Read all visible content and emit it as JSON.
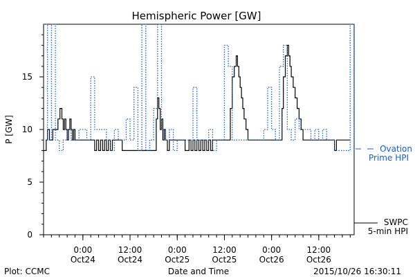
{
  "chart_data": {
    "type": "line",
    "title": "Hemispheric Power [GW]",
    "xlabel": "Date and Time",
    "ylabel": "P [GW]",
    "ylim": [
      0,
      20
    ],
    "xlim": [
      "2015-10-23T14:00",
      "2015-10-26T21:00"
    ],
    "yticks": [
      0,
      5,
      10,
      15
    ],
    "x_tick_labels": [
      {
        "time": "2015-10-24T00:00",
        "label": "0:00",
        "sublabel": "Oct24"
      },
      {
        "time": "2015-10-24T12:00",
        "label": "12:00",
        "sublabel": "Oct24"
      },
      {
        "time": "2015-10-25T00:00",
        "label": "0:00",
        "sublabel": "Oct25"
      },
      {
        "time": "2015-10-25T12:00",
        "label": "12:00",
        "sublabel": "Oct25"
      },
      {
        "time": "2015-10-26T00:00",
        "label": "0:00",
        "sublabel": "Oct26"
      },
      {
        "time": "2015-10-26T12:00",
        "label": "12:00",
        "sublabel": "Oct26"
      }
    ],
    "grid": false,
    "series": [
      {
        "name": "SWPC 5-min HPI",
        "color": "#000000",
        "style": "solid-step",
        "x": [
          "2015-10-23T14:00",
          "2015-10-23T14:40",
          "2015-10-23T15:00",
          "2015-10-23T15:30",
          "2015-10-23T16:20",
          "2015-10-23T17:40",
          "2015-10-23T18:10",
          "2015-10-23T18:40",
          "2015-10-23T19:00",
          "2015-10-23T19:20",
          "2015-10-23T19:40",
          "2015-10-23T20:00",
          "2015-10-23T20:20",
          "2015-10-23T20:40",
          "2015-10-23T21:00",
          "2015-10-23T21:20",
          "2015-10-23T21:40",
          "2015-10-23T22:00",
          "2015-10-23T22:20",
          "2015-10-23T23:30",
          "2015-10-24T00:30",
          "2015-10-24T01:30",
          "2015-10-24T03:00",
          "2015-10-24T03:30",
          "2015-10-24T04:00",
          "2015-10-24T04:30",
          "2015-10-24T05:00",
          "2015-10-24T05:30",
          "2015-10-24T06:00",
          "2015-10-24T06:30",
          "2015-10-24T07:00",
          "2015-10-24T07:30",
          "2015-10-24T08:00",
          "2015-10-24T08:30",
          "2015-10-24T09:00",
          "2015-10-24T09:30",
          "2015-10-24T10:00",
          "2015-10-24T18:40",
          "2015-10-24T19:00",
          "2015-10-24T19:20",
          "2015-10-24T19:40",
          "2015-10-24T20:00",
          "2015-10-24T20:20",
          "2015-10-24T20:40",
          "2015-10-24T21:00",
          "2015-10-24T21:30",
          "2015-10-24T22:00",
          "2015-10-24T23:00",
          "2015-10-25T00:00",
          "2015-10-25T01:00",
          "2015-10-25T02:00",
          "2015-10-25T03:00",
          "2015-10-25T03:30",
          "2015-10-25T04:00",
          "2015-10-25T04:30",
          "2015-10-25T05:00",
          "2015-10-25T05:30",
          "2015-10-25T06:00",
          "2015-10-25T06:30",
          "2015-10-25T07:00",
          "2015-10-25T07:30",
          "2015-10-25T08:00",
          "2015-10-25T08:30",
          "2015-10-25T09:00",
          "2015-10-25T09:30",
          "2015-10-25T10:00",
          "2015-10-25T11:00",
          "2015-10-25T12:00",
          "2015-10-25T13:00",
          "2015-10-25T13:30",
          "2015-10-25T14:00",
          "2015-10-25T14:30",
          "2015-10-25T15:00",
          "2015-10-25T15:20",
          "2015-10-25T15:40",
          "2015-10-25T16:00",
          "2015-10-25T16:20",
          "2015-10-25T16:40",
          "2015-10-25T17:00",
          "2015-10-25T17:30",
          "2015-10-25T18:00",
          "2015-10-25T18:30",
          "2015-10-25T19:00",
          "2015-10-25T19:30",
          "2015-10-25T20:00",
          "2015-10-25T21:00",
          "2015-10-26T00:00",
          "2015-10-26T01:00",
          "2015-10-26T02:00",
          "2015-10-26T02:40",
          "2015-10-26T03:00",
          "2015-10-26T03:30",
          "2015-10-26T04:00",
          "2015-10-26T04:20",
          "2015-10-26T04:40",
          "2015-10-26T05:00",
          "2015-10-26T05:30",
          "2015-10-26T06:00",
          "2015-10-26T06:30",
          "2015-10-26T07:00",
          "2015-10-26T07:30",
          "2015-10-26T08:00",
          "2015-10-26T08:30",
          "2015-10-26T09:00",
          "2015-10-26T10:00",
          "2015-10-26T11:00",
          "2015-10-26T12:00",
          "2015-10-26T13:00",
          "2015-10-26T14:00",
          "2015-10-26T15:00",
          "2015-10-26T16:00",
          "2015-10-26T16:30",
          "2015-10-26T17:00",
          "2015-10-26T18:00"
        ],
        "values": [
          8,
          9,
          10,
          9,
          10,
          11,
          12,
          11,
          10,
          11,
          10,
          9,
          10,
          11,
          10,
          9,
          10,
          9,
          9,
          9,
          9,
          9,
          8,
          9,
          8,
          9,
          8,
          9,
          8,
          9,
          8,
          9,
          9,
          9,
          9,
          9,
          8,
          11,
          13,
          12,
          10,
          11,
          9,
          10,
          9,
          8,
          9,
          9,
          9,
          9,
          8,
          9,
          8,
          9,
          8,
          9,
          8,
          9,
          8,
          9,
          8,
          9,
          8,
          9,
          9,
          9,
          9,
          9,
          9,
          12,
          15,
          16,
          17,
          16,
          15,
          14,
          13,
          12,
          11,
          10,
          9,
          9,
          9,
          9,
          9,
          9,
          9,
          9,
          9,
          12,
          15,
          17,
          18,
          17,
          16,
          15,
          14,
          13,
          12,
          11,
          10,
          9,
          9,
          9,
          9,
          9,
          9,
          9,
          9,
          9,
          8,
          9,
          9,
          9
        ]
      },
      {
        "name": "Ovation Prime HPI",
        "color": "#1a5fc8",
        "style": "dotted-step",
        "x": [
          "2015-10-23T14:00",
          "2015-10-23T15:00",
          "2015-10-23T16:00",
          "2015-10-23T17:00",
          "2015-10-23T18:00",
          "2015-10-23T19:00",
          "2015-10-23T20:00",
          "2015-10-23T21:00",
          "2015-10-23T22:00",
          "2015-10-23T23:00",
          "2015-10-24T00:00",
          "2015-10-24T01:00",
          "2015-10-24T02:00",
          "2015-10-24T03:00",
          "2015-10-24T04:00",
          "2015-10-24T05:00",
          "2015-10-24T06:00",
          "2015-10-24T07:00",
          "2015-10-24T08:00",
          "2015-10-24T09:00",
          "2015-10-24T10:00",
          "2015-10-24T11:00",
          "2015-10-24T12:00",
          "2015-10-24T13:00",
          "2015-10-24T14:00",
          "2015-10-24T15:00",
          "2015-10-24T16:00",
          "2015-10-24T17:00",
          "2015-10-24T18:00",
          "2015-10-24T19:00",
          "2015-10-24T20:00",
          "2015-10-24T21:00",
          "2015-10-24T22:00",
          "2015-10-24T23:00",
          "2015-10-25T00:00",
          "2015-10-25T01:00",
          "2015-10-25T02:00",
          "2015-10-25T03:00",
          "2015-10-25T04:00",
          "2015-10-25T05:00",
          "2015-10-25T06:00",
          "2015-10-25T07:00",
          "2015-10-25T08:00",
          "2015-10-25T09:00",
          "2015-10-25T10:00",
          "2015-10-25T11:00",
          "2015-10-25T12:00",
          "2015-10-25T13:00",
          "2015-10-25T14:00",
          "2015-10-25T15:00",
          "2015-10-25T16:00",
          "2015-10-25T17:00",
          "2015-10-25T18:00",
          "2015-10-25T19:00",
          "2015-10-25T20:00",
          "2015-10-25T21:00",
          "2015-10-25T22:00",
          "2015-10-25T23:00",
          "2015-10-26T00:00",
          "2015-10-26T01:00",
          "2015-10-26T02:00",
          "2015-10-26T03:00",
          "2015-10-26T04:00",
          "2015-10-26T05:00",
          "2015-10-26T06:00",
          "2015-10-26T07:00",
          "2015-10-26T08:00",
          "2015-10-26T09:00",
          "2015-10-26T10:00",
          "2015-10-26T11:00",
          "2015-10-26T12:00",
          "2015-10-26T13:00",
          "2015-10-26T14:00",
          "2015-10-26T15:00",
          "2015-10-26T16:00",
          "2015-10-26T17:00",
          "2015-10-26T18:00",
          "2015-10-26T19:00",
          "2015-10-26T20:00",
          "2015-10-26T21:00"
        ],
        "values": [
          20,
          9,
          20,
          9,
          8,
          9,
          10,
          9,
          9,
          10,
          10,
          9,
          15,
          10,
          10,
          10,
          9,
          8,
          10,
          9,
          9,
          11,
          9,
          14,
          8,
          20,
          8,
          9,
          12,
          20,
          10,
          9,
          10,
          8,
          9,
          9,
          9,
          9,
          14,
          9,
          9,
          9,
          10,
          8,
          9,
          9,
          18,
          16,
          9,
          9,
          9,
          9,
          9,
          9,
          9,
          9,
          10,
          14,
          10,
          9,
          16,
          18,
          10,
          9,
          11,
          10,
          10,
          10,
          9,
          10,
          9,
          10,
          9,
          9,
          8,
          8,
          8,
          8,
          20,
          8
        ]
      }
    ]
  },
  "legend": {
    "ovation": {
      "line1": "Ovation",
      "line2": "Prime HPI"
    },
    "swpc": {
      "line1": "SWPC",
      "line2": "5-min HPI"
    }
  },
  "footer": {
    "left": "Plot: CCMC",
    "center": "Date and Time",
    "right": "2015/10/26 16:30:11"
  }
}
